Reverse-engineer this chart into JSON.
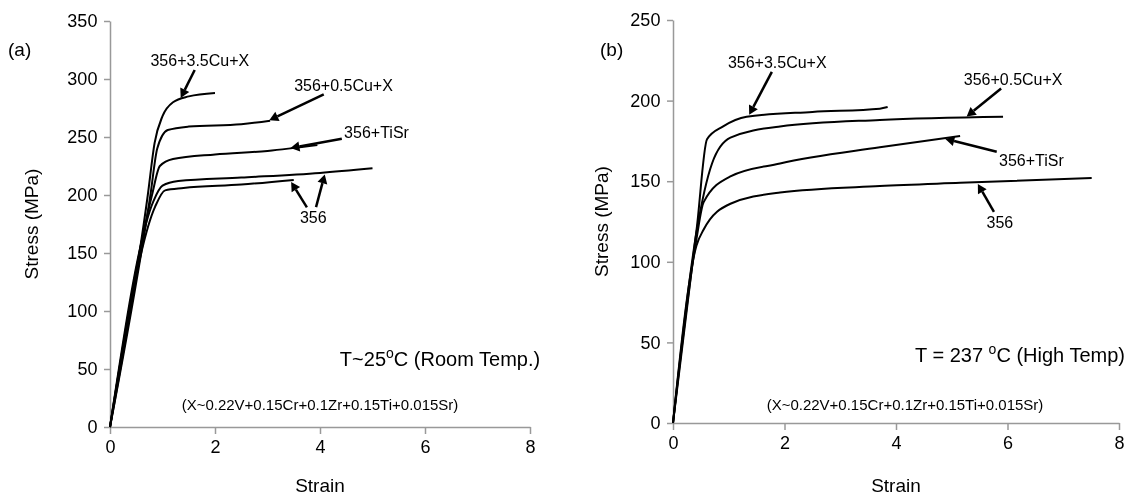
{
  "chart_data": [
    {
      "type": "line",
      "title": "(a)",
      "xlabel": "Strain",
      "ylabel": "Stress (MPa)",
      "xlim": [
        0,
        8
      ],
      "xticks": [
        0,
        2,
        4,
        6,
        8
      ],
      "ylim": [
        0,
        350
      ],
      "yticks": [
        0,
        50,
        100,
        150,
        200,
        250,
        300,
        350
      ],
      "annotations": [
        "T~25$^{o}$C  (Room Temp.)",
        "(X~0.22V+0.15Cr+0.1Zr+0.15Ti+0.015Sr)"
      ],
      "series": [
        {
          "name": "356+3.5Cu+X",
          "color": "#000000",
          "x": [
            0,
            0.72,
            0.85,
            1.0,
            1.2,
            1.5,
            2.0
          ],
          "values": [
            0,
            200,
            245,
            268,
            280,
            285,
            288
          ]
        },
        {
          "name": "356+0.5Cu+X",
          "color": "#000000",
          "x": [
            0,
            0.77,
            0.9,
            1.1,
            1.5,
            2.5,
            3.05
          ],
          "values": [
            0,
            200,
            240,
            256,
            259,
            261,
            264
          ]
        },
        {
          "name": "356+TiSr",
          "color": "#000000",
          "x": [
            0,
            0.8,
            0.95,
            1.2,
            2.0,
            3.0,
            3.95
          ],
          "values": [
            0,
            200,
            225,
            231,
            235,
            238,
            243
          ]
        },
        {
          "name": "356",
          "color": "#000000",
          "x": [
            0,
            0.83,
            1.0,
            1.3,
            2.5,
            4.0,
            5.0
          ],
          "values": [
            0,
            195,
            208,
            212,
            215,
            219,
            223
          ]
        },
        {
          "color": "#000000",
          "x": [
            0,
            0.86,
            1.05,
            1.4,
            2.5,
            3.5
          ],
          "values": [
            0,
            190,
            204,
            206,
            209,
            213
          ]
        }
      ]
    },
    {
      "type": "line",
      "title": "(b)",
      "xlabel": "Strain",
      "ylabel": "Stress (MPa)",
      "xlim": [
        0,
        8
      ],
      "xticks": [
        0,
        2,
        4,
        6,
        8
      ],
      "ylim": [
        0,
        250
      ],
      "yticks": [
        0,
        50,
        100,
        150,
        200,
        250
      ],
      "annotations": [
        "T = 237 $^{o}$C (High Temp)",
        "(X~0.22V+0.15Cr+0.1Zr+0.15Ti+0.015Sr)"
      ],
      "series": [
        {
          "name": "356+3.5Cu+X",
          "color": "#000000",
          "x": [
            0,
            0.43,
            0.61,
            0.9,
            1.32,
            2.5,
            3.71,
            3.85
          ],
          "values": [
            0,
            122,
            176,
            184,
            190,
            193,
            195,
            196
          ]
        },
        {
          "name": "356+0.5Cu+X",
          "color": "#000000",
          "x": [
            0,
            0.42,
            0.7,
            1.03,
            1.92,
            3.71,
            5.92
          ],
          "values": [
            0,
            118,
            161,
            177,
            184,
            188,
            190
          ]
        },
        {
          "name": "356+TiSr",
          "color": "#000000",
          "x": [
            0,
            0.42,
            0.55,
            1.03,
            1.92,
            3.71,
            5.15
          ],
          "values": [
            0,
            114,
            137,
            153,
            161,
            171,
            178
          ]
        },
        {
          "name": "356",
          "color": "#000000",
          "x": [
            0,
            0.42,
            0.55,
            1.03,
            1.92,
            3.71,
            5.15,
            7.51
          ],
          "values": [
            0,
            110,
            120,
            136,
            143,
            147,
            149,
            152
          ]
        }
      ]
    }
  ]
}
